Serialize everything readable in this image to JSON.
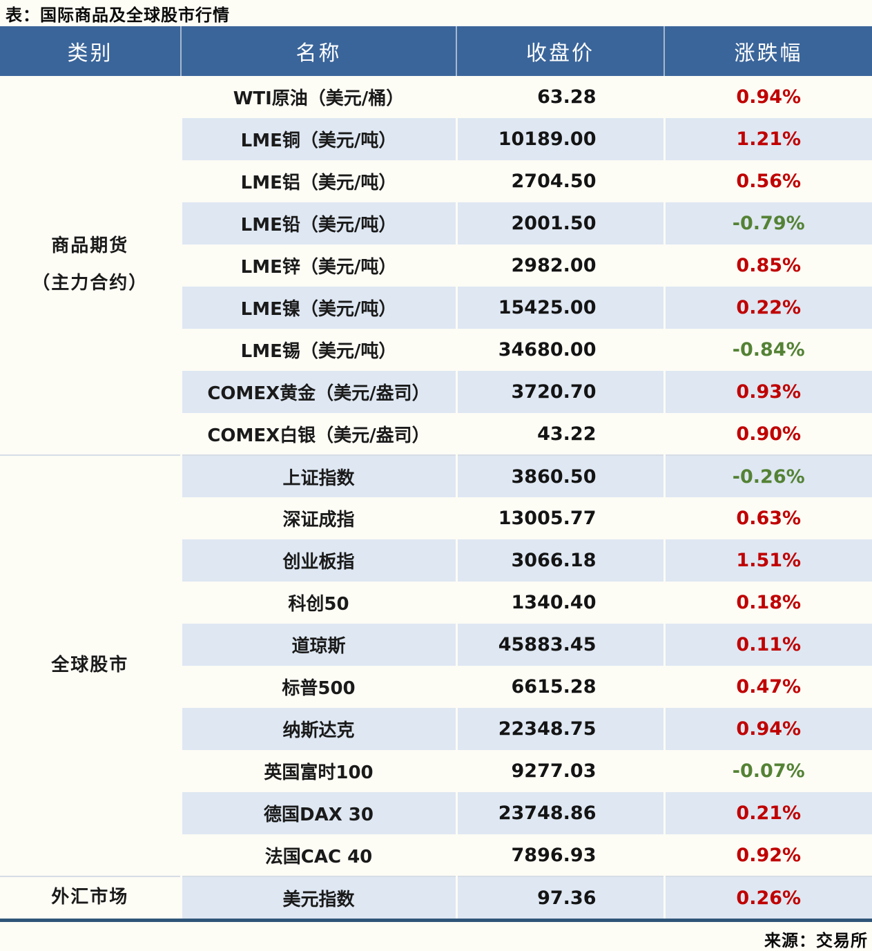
{
  "colors": {
    "header_bg": "#3A659A",
    "band_blue": "#DEE7F2",
    "band_cream": "#FDFCF5",
    "up_red": "#C00000",
    "down_green": "#548235",
    "bottom_border": "#2F5578"
  },
  "chart_data": {
    "type": "table",
    "title": "表：国际商品及全球股市行情",
    "source": "来源：交易所",
    "columns": [
      "类别",
      "名称",
      "收盘价",
      "涨跌幅"
    ],
    "groups": [
      {
        "category_lines": [
          "商品期货",
          "（主力合约）"
        ],
        "rows": [
          {
            "name": "WTI原油（美元/桶）",
            "close": "63.28",
            "change": "0.94%"
          },
          {
            "name": "LME铜（美元/吨）",
            "close": "10189.00",
            "change": "1.21%"
          },
          {
            "name": "LME铝（美元/吨）",
            "close": "2704.50",
            "change": "0.56%"
          },
          {
            "name": "LME铅（美元/吨）",
            "close": "2001.50",
            "change": "-0.79%"
          },
          {
            "name": "LME锌（美元/吨）",
            "close": "2982.00",
            "change": "0.85%"
          },
          {
            "name": "LME镍（美元/吨）",
            "close": "15425.00",
            "change": "0.22%"
          },
          {
            "name": "LME锡（美元/吨）",
            "close": "34680.00",
            "change": "-0.84%"
          },
          {
            "name": "COMEX黄金（美元/盎司）",
            "close": "3720.70",
            "change": "0.93%"
          },
          {
            "name": "COMEX白银（美元/盎司）",
            "close": "43.22",
            "change": "0.90%"
          }
        ]
      },
      {
        "category_lines": [
          "全球股市"
        ],
        "rows": [
          {
            "name": "上证指数",
            "close": "3860.50",
            "change": "-0.26%"
          },
          {
            "name": "深证成指",
            "close": "13005.77",
            "change": "0.63%"
          },
          {
            "name": "创业板指",
            "close": "3066.18",
            "change": "1.51%"
          },
          {
            "name": "科创50",
            "close": "1340.40",
            "change": "0.18%"
          },
          {
            "name": "道琼斯",
            "close": "45883.45",
            "change": "0.11%"
          },
          {
            "name": "标普500",
            "close": "6615.28",
            "change": "0.47%"
          },
          {
            "name": "纳斯达克",
            "close": "22348.75",
            "change": "0.94%"
          },
          {
            "name": "英国富时100",
            "close": "9277.03",
            "change": "-0.07%"
          },
          {
            "name": "德国DAX 30",
            "close": "23748.86",
            "change": "0.21%"
          },
          {
            "name": "法国CAC 40",
            "close": "7896.93",
            "change": "0.92%"
          }
        ]
      },
      {
        "category_lines": [
          "外汇市场"
        ],
        "rows": [
          {
            "name": "美元指数",
            "close": "97.36",
            "change": "0.26%"
          }
        ]
      }
    ]
  }
}
